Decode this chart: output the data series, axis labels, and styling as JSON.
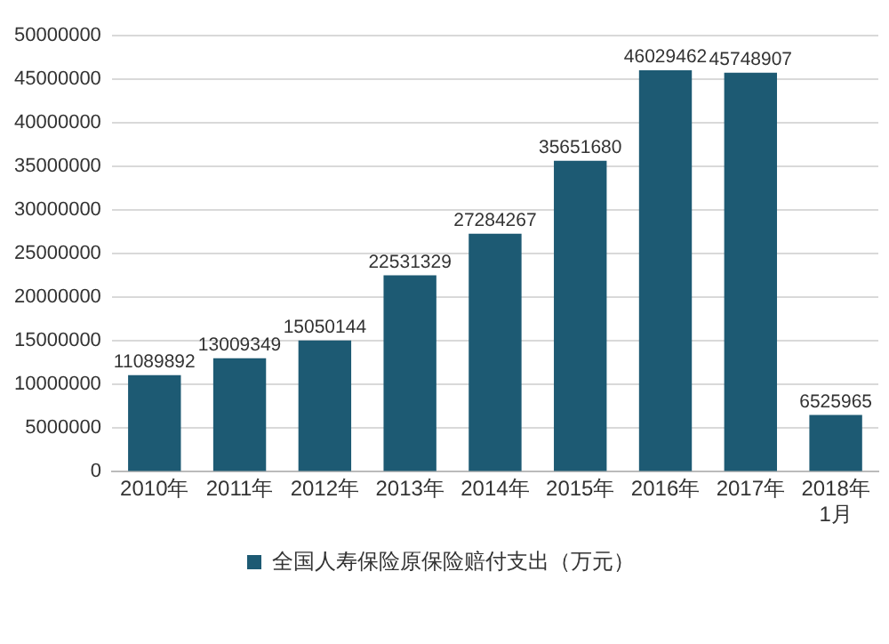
{
  "chart_data": {
    "type": "bar",
    "categories": [
      "2010年",
      "2011年",
      "2012年",
      "2013年",
      "2014年",
      "2015年",
      "2016年",
      "2017年",
      "2018年1月"
    ],
    "series": [
      {
        "name": "全国人寿保险原保险赔付支出（万元）",
        "color": "#1d5a73",
        "values": [
          11089892,
          13009349,
          15050144,
          22531329,
          27284267,
          35651680,
          46029462,
          45748907,
          6525965
        ]
      }
    ],
    "ylim": [
      0,
      50000000
    ],
    "yticks": [
      0,
      5000000,
      10000000,
      15000000,
      20000000,
      25000000,
      30000000,
      35000000,
      40000000,
      45000000,
      50000000
    ],
    "grid": "y",
    "legend": "bottom",
    "data_labels": true
  }
}
